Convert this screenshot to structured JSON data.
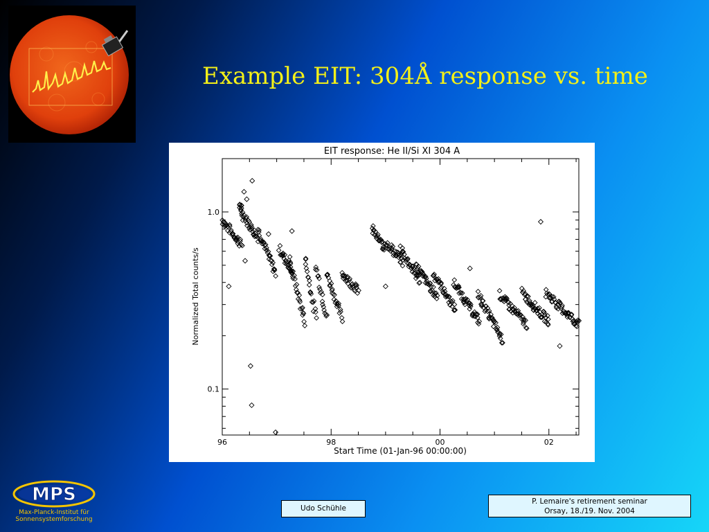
{
  "slide": {
    "title": "Example EIT: 304Å response vs. time"
  },
  "logo": {
    "text": "MPS",
    "name_line1": "Max-Planck-Institut für",
    "name_line2": "Sonnensystemforschung"
  },
  "footer": {
    "author": "Udo Schühle",
    "seminar_line1": "P. Lemaire's retirement seminar",
    "seminar_line2": "Orsay, 18./19. Nov. 2004"
  },
  "colors": {
    "title": "#f4f018",
    "sun": "#e8420c",
    "logo_text": "#f5c400"
  },
  "icons": [
    "sun-image",
    "spacecraft-icon",
    "mps-logo"
  ],
  "chart_data": {
    "type": "scatter",
    "title": "EIT response: He II/Si XI 304 A",
    "xlabel": "Start Time (01-Jan-96 00:00:00)",
    "ylabel": "Normalized Total counts/s",
    "y_scale": "log",
    "xlim": [
      1996.0,
      2002.55
    ],
    "ylim": [
      0.055,
      2.0
    ],
    "x_tick_labels": [
      {
        "x": 1996,
        "label": "96"
      },
      {
        "x": 1998,
        "label": "98"
      },
      {
        "x": 2000,
        "label": "00"
      },
      {
        "x": 2002,
        "label": "02"
      }
    ],
    "y_tick_labels": [
      {
        "y": 1.0,
        "label": "1.0"
      },
      {
        "y": 0.1,
        "label": "0.1"
      }
    ],
    "marker": "diamond",
    "grid": false,
    "segments": [
      {
        "x": [
          1996.0,
          1996.36
        ],
        "y": [
          0.9,
          0.65
        ]
      },
      {
        "x": [
          1996.32,
          1996.38
        ],
        "y": [
          1.1,
          0.95
        ]
      },
      {
        "x": [
          1996.4,
          1996.65
        ],
        "y": [
          0.95,
          0.72
        ]
      },
      {
        "x": [
          1996.65,
          1996.98
        ],
        "y": [
          0.8,
          0.45
        ]
      },
      {
        "x": [
          1997.05,
          1997.3
        ],
        "y": [
          0.62,
          0.45
        ]
      },
      {
        "x": [
          1997.22,
          1997.52
        ],
        "y": [
          0.55,
          0.24
        ]
      },
      {
        "x": [
          1997.52,
          1997.72
        ],
        "y": [
          0.55,
          0.25
        ]
      },
      {
        "x": [
          1997.72,
          1997.92
        ],
        "y": [
          0.5,
          0.25
        ]
      },
      {
        "x": [
          1997.92,
          1998.2
        ],
        "y": [
          0.45,
          0.25
        ]
      },
      {
        "x": [
          1998.2,
          1998.5
        ],
        "y": [
          0.45,
          0.36
        ]
      },
      {
        "x": [
          1998.75,
          1998.98
        ],
        "y": [
          0.8,
          0.62
        ]
      },
      {
        "x": [
          1999.0,
          1999.32
        ],
        "y": [
          0.68,
          0.52
        ]
      },
      {
        "x": [
          1999.28,
          1999.62
        ],
        "y": [
          0.62,
          0.41
        ]
      },
      {
        "x": [
          1999.55,
          1999.95
        ],
        "y": [
          0.5,
          0.33
        ]
      },
      {
        "x": [
          1999.88,
          2000.28
        ],
        "y": [
          0.45,
          0.28
        ]
      },
      {
        "x": [
          2000.25,
          2000.72
        ],
        "y": [
          0.4,
          0.24
        ]
      },
      {
        "x": [
          2000.7,
          2001.15
        ],
        "y": [
          0.34,
          0.19
        ]
      },
      {
        "x": [
          2001.1,
          2001.6
        ],
        "y": [
          0.34,
          0.23
        ]
      },
      {
        "x": [
          2001.5,
          2002.0
        ],
        "y": [
          0.35,
          0.24
        ]
      },
      {
        "x": [
          2001.95,
          2002.55
        ],
        "y": [
          0.35,
          0.23
        ]
      }
    ],
    "outliers": [
      {
        "x": 1996.55,
        "y": 1.5
      },
      {
        "x": 1996.4,
        "y": 1.3
      },
      {
        "x": 1996.45,
        "y": 1.18
      },
      {
        "x": 1996.12,
        "y": 0.38
      },
      {
        "x": 1996.42,
        "y": 0.53
      },
      {
        "x": 1996.52,
        "y": 0.135
      },
      {
        "x": 1996.54,
        "y": 0.081
      },
      {
        "x": 1996.98,
        "y": 0.057
      },
      {
        "x": 1997.28,
        "y": 0.78
      },
      {
        "x": 1999.0,
        "y": 0.38
      },
      {
        "x": 2001.85,
        "y": 0.88
      },
      {
        "x": 2002.2,
        "y": 0.175
      },
      {
        "x": 2000.55,
        "y": 0.48
      },
      {
        "x": 1996.85,
        "y": 0.75
      }
    ]
  }
}
